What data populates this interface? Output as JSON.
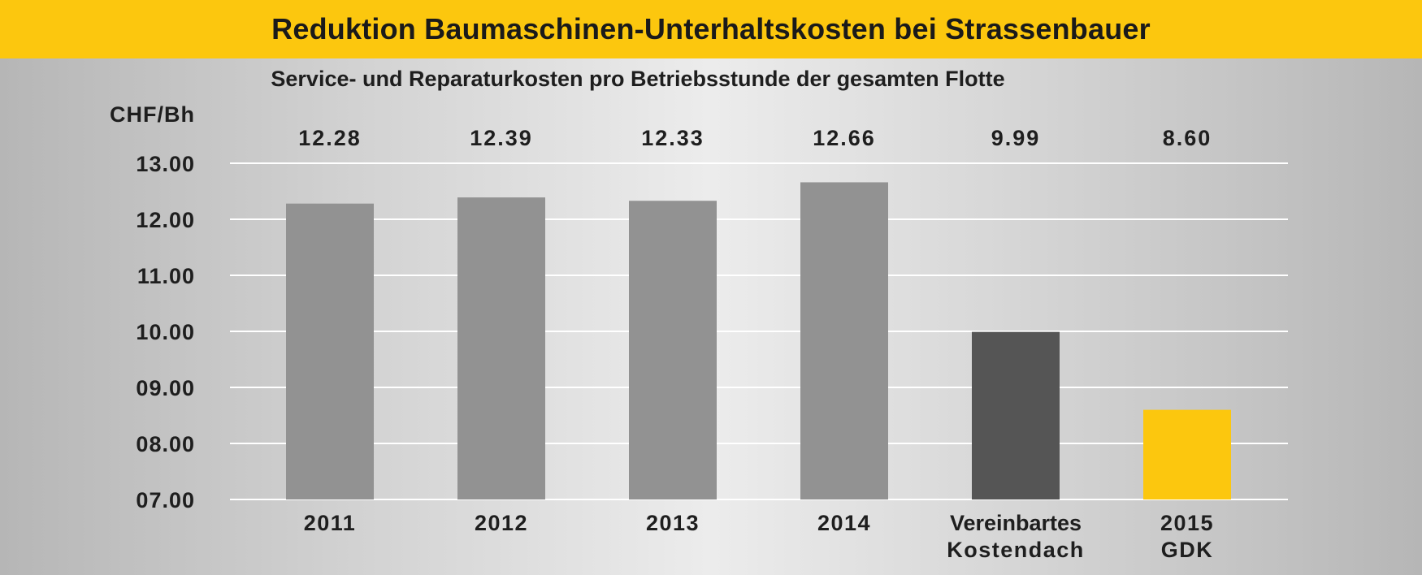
{
  "chart_data": {
    "type": "bar",
    "title": "Reduktion Baumaschinen-Unterhaltskosten bei Strassenbauer",
    "subtitle": "Service- und Reparaturkosten pro Betriebsstunde der gesamten Flotte",
    "ylabel": "CHF/Bh",
    "xlabel": "",
    "categories": [
      [
        "2011"
      ],
      [
        "2012"
      ],
      [
        "2013"
      ],
      [
        "2014"
      ],
      [
        "Vereinbartes",
        "Kostendach"
      ],
      [
        "2015",
        "GDK"
      ]
    ],
    "values": [
      12.28,
      12.39,
      12.33,
      12.66,
      9.99,
      8.6
    ],
    "value_labels": [
      "12.28",
      "12.39",
      "12.33",
      "12.66",
      "9.99",
      "8.60"
    ],
    "bar_colors": [
      "#929292",
      "#929292",
      "#929292",
      "#929292",
      "#555555",
      "#fcc70e"
    ],
    "y_ticks": [
      7,
      8,
      9,
      10,
      11,
      12,
      13
    ],
    "y_tick_labels": [
      "07.00",
      "08.00",
      "09.00",
      "10.00",
      "11.00",
      "12.00",
      "13.00"
    ],
    "ylim": [
      7,
      13
    ],
    "grid": true,
    "grid_color": "#ffffff",
    "title_bar_color": "#fcc70e"
  }
}
